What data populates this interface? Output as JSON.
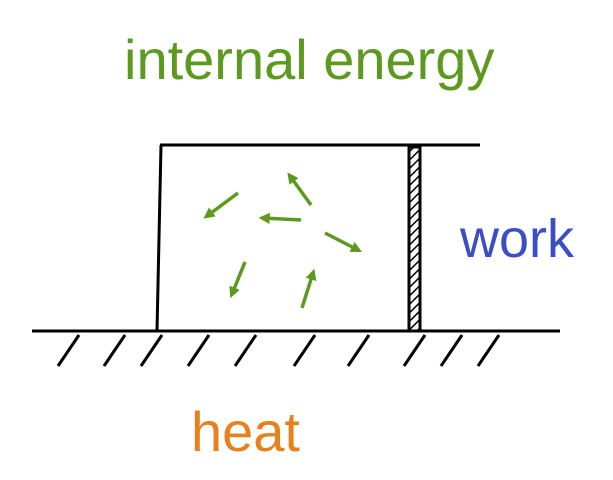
{
  "labels": {
    "internal_energy": "internal energy",
    "work": "work",
    "heat": "heat"
  },
  "colors": {
    "internal_energy": "#5c9a1f",
    "work": "#3b4ec4",
    "heat": "#e8811c",
    "line": "#000000",
    "arrows": "#5c9a1f"
  }
}
